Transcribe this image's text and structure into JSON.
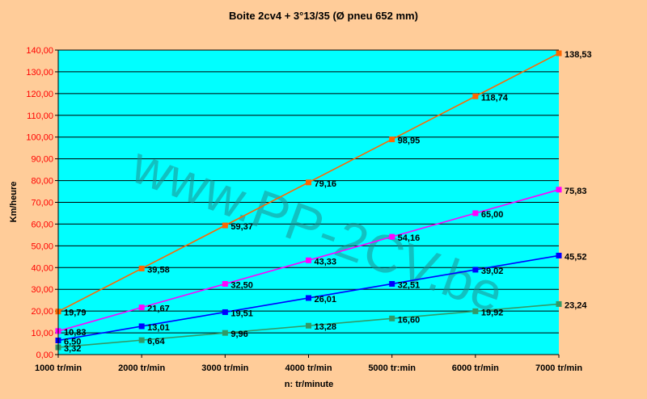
{
  "watermark": "www.PP-2CV.be",
  "colors": {
    "background": "#ffcc99",
    "plot_area": "#00ffff",
    "axis_labels": "#ff0000"
  },
  "chart_data": {
    "type": "line",
    "title": "Boite 2cv4 + 3°13/35 (Ø pneu 652 mm)",
    "xlabel": "n: tr/minute",
    "ylabel": "Km/heure",
    "categories": [
      "1000 tr/min",
      "2000 tr/min",
      "3000 tr/min",
      "4000 tr/min",
      "5000 tr:min",
      "6000 tr/min",
      "7000 tr/min"
    ],
    "y_ticks": [
      "0,00",
      "10,00",
      "20,00",
      "30,00",
      "40,00",
      "50,00",
      "60,00",
      "70,00",
      "80,00",
      "90,00",
      "100,00",
      "110,00",
      "120,00",
      "130,00",
      "140,00"
    ],
    "ylim": [
      0,
      140
    ],
    "grid": true,
    "series": [
      {
        "color": "#ff6600",
        "values": [
          19.79,
          39.58,
          59.37,
          79.16,
          98.95,
          118.74,
          138.53
        ],
        "labels": [
          "19,79",
          "39,58",
          "59,37",
          "79,16",
          "98,95",
          "118,74",
          "138,53"
        ]
      },
      {
        "color": "#ff00ff",
        "values": [
          10.83,
          21.67,
          32.5,
          43.33,
          54.16,
          65.0,
          75.83
        ],
        "labels": [
          "10,83",
          "21,67",
          "32,50",
          "43,33",
          "54,16",
          "65,00",
          "75,83"
        ]
      },
      {
        "color": "#0000ff",
        "values": [
          6.5,
          13.01,
          19.51,
          26.01,
          32.51,
          39.02,
          45.52
        ],
        "labels": [
          "6,50",
          "13,01",
          "19,51",
          "26,01",
          "32,51",
          "39,02",
          "45,52"
        ]
      },
      {
        "color": "#339966",
        "values": [
          3.32,
          6.64,
          9.96,
          13.28,
          16.6,
          19.92,
          23.24
        ],
        "labels": [
          "3,32",
          "6,64",
          "9,96",
          "13,28",
          "16,60",
          "19,92",
          "23,24"
        ]
      }
    ]
  }
}
